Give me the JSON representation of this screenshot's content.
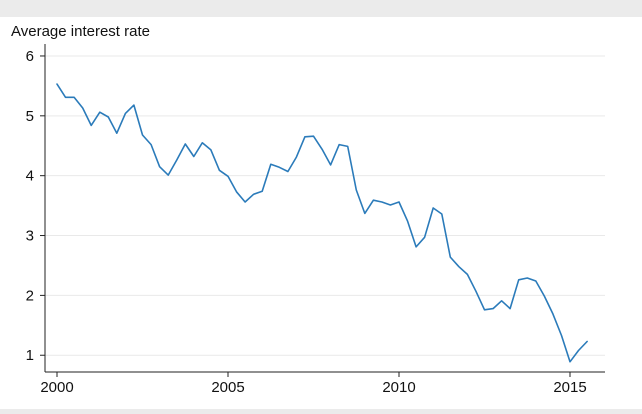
{
  "chart_data": {
    "type": "line",
    "title": "Average interest rate",
    "xlabel": "",
    "ylabel": "",
    "xlim": [
      2000,
      2015.7
    ],
    "ylim": [
      0.72,
      6.2
    ],
    "x_ticks": [
      2000,
      2005,
      2010,
      2015
    ],
    "x_tick_labels": [
      "2000",
      "2005",
      "2010",
      "2015"
    ],
    "y_ticks": [
      1,
      2,
      3,
      4,
      5,
      6
    ],
    "y_tick_labels": [
      "1",
      "2",
      "3",
      "4",
      "5",
      "6"
    ],
    "grid": "horizontal",
    "colors": {
      "line": "#2b7bba",
      "plot_background": "#ffffff",
      "frame_background": "#ebebeb",
      "grid": "#e9e9e9"
    },
    "series": [
      {
        "x": [
          2000.0,
          2000.25,
          2000.5,
          2000.75,
          2001.0,
          2001.25,
          2001.5,
          2001.75,
          2002.0,
          2002.25,
          2002.5,
          2002.75,
          2003.0,
          2003.25,
          2003.5,
          2003.75,
          2004.0,
          2004.25,
          2004.5,
          2004.75,
          2005.0,
          2005.25,
          2005.5,
          2005.75,
          2006.0,
          2006.25,
          2006.5,
          2006.75,
          2007.0,
          2007.25,
          2007.5,
          2007.75,
          2008.0,
          2008.25,
          2008.5,
          2008.75,
          2009.0,
          2009.25,
          2009.5,
          2009.75,
          2010.0,
          2010.25,
          2010.5,
          2010.75,
          2011.0,
          2011.25,
          2011.5,
          2011.75,
          2012.0,
          2012.25,
          2012.5,
          2012.75,
          2013.0,
          2013.25,
          2013.5,
          2013.75,
          2014.0,
          2014.25,
          2014.5,
          2014.75,
          2015.0,
          2015.25,
          2015.5
        ],
        "y": [
          5.53,
          5.31,
          5.31,
          5.13,
          4.84,
          5.06,
          4.98,
          4.71,
          5.04,
          5.18,
          4.68,
          4.52,
          4.15,
          4.01,
          4.26,
          4.53,
          4.32,
          4.55,
          4.43,
          4.09,
          3.99,
          3.73,
          3.56,
          3.69,
          3.74,
          4.19,
          4.14,
          4.07,
          4.31,
          4.65,
          4.66,
          4.44,
          4.18,
          4.52,
          4.49,
          3.76,
          3.37,
          3.59,
          3.56,
          3.51,
          3.56,
          3.24,
          2.81,
          2.97,
          3.46,
          3.36,
          2.64,
          2.48,
          2.35,
          2.07,
          1.76,
          1.78,
          1.91,
          1.78,
          2.26,
          2.29,
          2.24,
          1.99,
          1.69,
          1.33,
          0.89,
          1.08,
          1.23
        ]
      }
    ]
  }
}
